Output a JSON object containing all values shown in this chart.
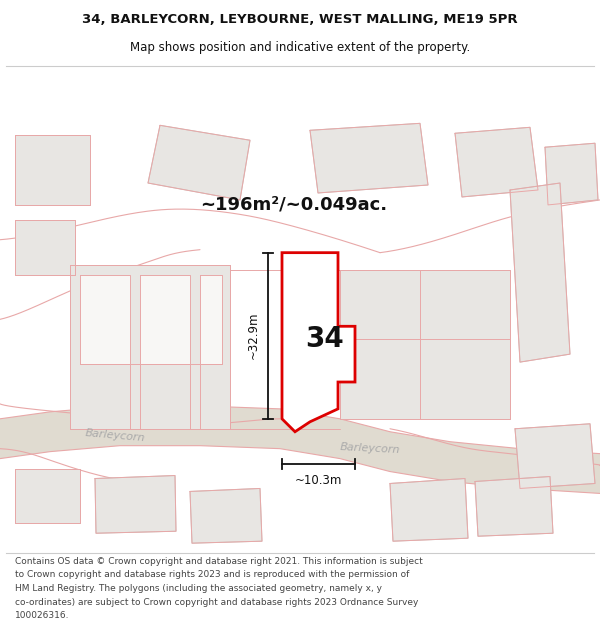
{
  "title_line1": "34, BARLEYCORN, LEYBOURNE, WEST MALLING, ME19 5PR",
  "title_line2": "Map shows position and indicative extent of the property.",
  "area_text": "~196m²/~0.049ac.",
  "label_34": "34",
  "dim_height": "~32.9m",
  "dim_width": "~10.3m",
  "footer_lines": [
    "Contains OS data © Crown copyright and database right 2021. This information is subject",
    "to Crown copyright and database rights 2023 and is reproduced with the permission of",
    "HM Land Registry. The polygons (including the associated geometry, namely x, y",
    "co-ordinates) are subject to Crown copyright and database rights 2023 Ordnance Survey",
    "100026316."
  ],
  "bg_color": "#ffffff",
  "map_bg": "#f8f7f5",
  "building_fill": "#e8e6e3",
  "building_stroke": "#c8c5c0",
  "highlight_fill": "#ffffff",
  "highlight_stroke": "#dd0000",
  "pink_line_color": "#e8a8a8",
  "road_fill": "#e0dbd0",
  "road_label_color": "#aaaaaa",
  "dim_color": "#111111",
  "text_color": "#111111"
}
